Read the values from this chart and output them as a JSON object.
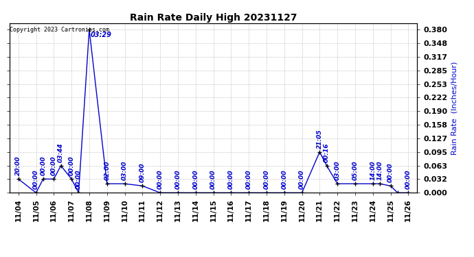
{
  "title": "Rain Rate Daily High 20231127",
  "ylabel_right": "Rain Rate  (Inches/Hour)",
  "copyright": "Copyright 2023 Cartronics.com",
  "line_color": "#0000cc",
  "background_color": "#ffffff",
  "grid_color": "#bbbbbb",
  "ylim": [
    0.0,
    0.395
  ],
  "yticks": [
    0.0,
    0.032,
    0.063,
    0.095,
    0.127,
    0.158,
    0.19,
    0.222,
    0.253,
    0.285,
    0.317,
    0.348,
    0.38
  ],
  "x_values": [
    0,
    1,
    1.4,
    2,
    2.4,
    3,
    3.4,
    4,
    5,
    6,
    7,
    8,
    9,
    10,
    11,
    12,
    13,
    14,
    15,
    16,
    17,
    17.4,
    18,
    19,
    20,
    20.4,
    21,
    21.4,
    22
  ],
  "y_values": [
    0.032,
    0.0,
    0.032,
    0.032,
    0.063,
    0.032,
    0.0,
    0.38,
    0.021,
    0.021,
    0.016,
    0.0,
    0.0,
    0.0,
    0.0,
    0.0,
    0.0,
    0.0,
    0.0,
    0.0,
    0.095,
    0.063,
    0.021,
    0.021,
    0.021,
    0.021,
    0.016,
    0.0,
    0.0
  ],
  "point_labels": [
    "20:00",
    "00:00",
    "00:00",
    "00:00",
    "03:44",
    "00:00",
    "00:00",
    "03:29",
    "02:00",
    "03:00",
    "09:00",
    "00:00",
    "00:00",
    "00:00",
    "00:00",
    "00:00",
    "00:00",
    "00:00",
    "00:00",
    "00:00",
    "21:05",
    "00:16",
    "03:00",
    "05:00",
    "14:00",
    "14:00",
    "00:00",
    "",
    "00:00"
  ],
  "day_tick_positions": [
    0,
    1,
    2,
    3,
    4,
    5,
    6,
    7,
    8,
    9,
    10,
    11,
    12,
    13,
    14,
    15,
    16,
    17,
    18,
    19,
    20,
    21,
    22
  ],
  "day_tick_labels": [
    "11/04",
    "11/05",
    "11/06",
    "11/07",
    "11/08",
    "11/09",
    "11/10",
    "11/11",
    "11/12",
    "11/13",
    "11/14",
    "11/15",
    "11/16",
    "11/17",
    "11/18",
    "11/19",
    "11/20",
    "11/21",
    "11/22",
    "11/23",
    "11/24",
    "11/25",
    "11/26"
  ]
}
